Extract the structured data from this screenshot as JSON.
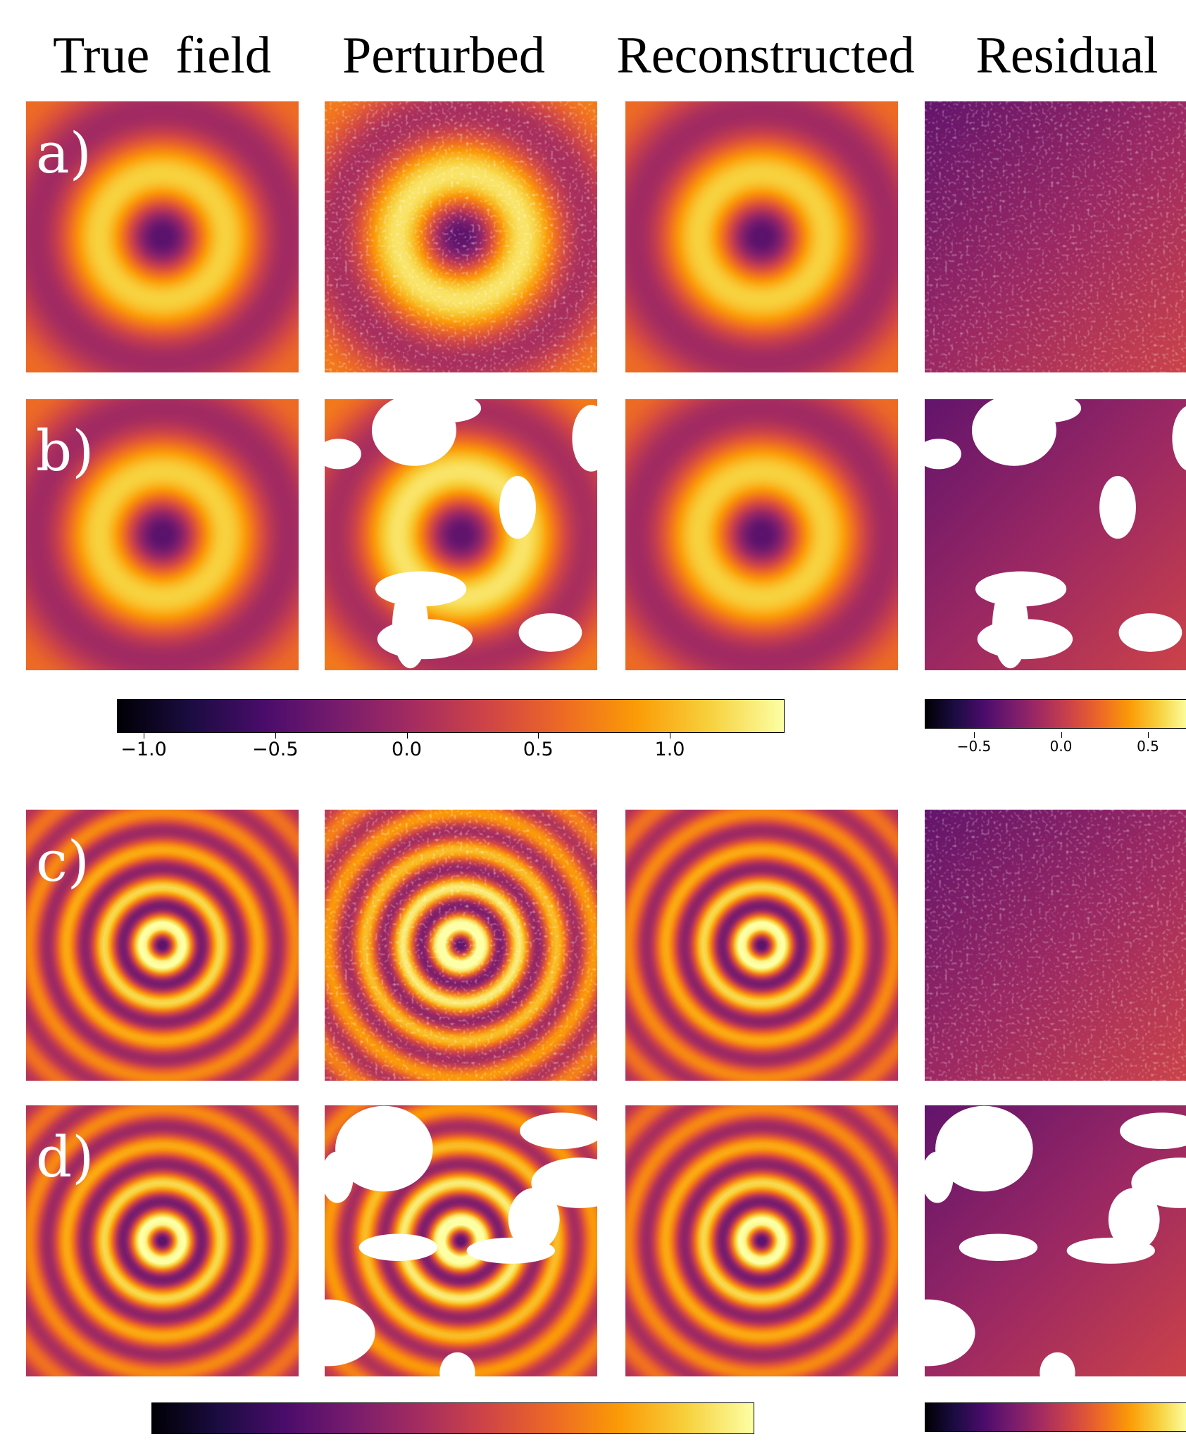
{
  "headers": [
    "True  field",
    "Perturbed",
    "Reconstructed",
    "Residual"
  ],
  "rows": [
    {
      "label": "a)",
      "rings": 1.6,
      "perturb": "noise"
    },
    {
      "label": "b)",
      "rings": 1.6,
      "perturb": "mask"
    },
    {
      "label": "c)",
      "rings": 5.2,
      "perturb": "noise"
    },
    {
      "label": "d)",
      "rings": 5.2,
      "perturb": "mask"
    }
  ],
  "colorbars": {
    "top_main_ticks": [
      "−1.0",
      "−0.5",
      "0.0",
      "0.5",
      "1.0"
    ],
    "top_residual_ticks": [
      "−0.5",
      "0.0",
      "0.5"
    ]
  },
  "colormap": [
    "#000004",
    "#1b0c41",
    "#4a0c6b",
    "#781c6d",
    "#a52c60",
    "#cf4446",
    "#ed6925",
    "#fb9b06",
    "#f7d13d",
    "#fcffa4"
  ]
}
